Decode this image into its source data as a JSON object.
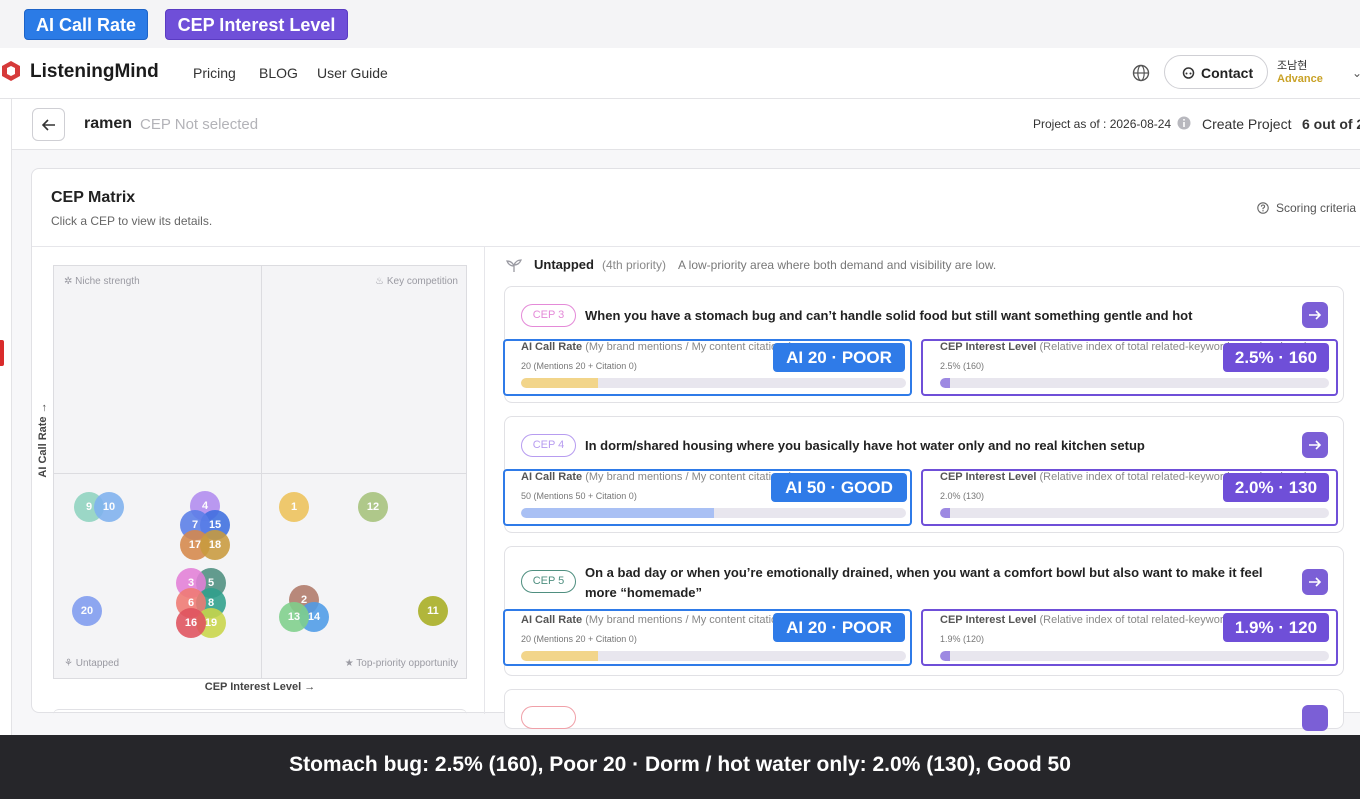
{
  "annotation_tags": {
    "ai_call_rate": "AI Call Rate",
    "cep_interest_level": "CEP Interest Level"
  },
  "navbar": {
    "brand": "ListeningMind",
    "links": [
      "Pricing",
      "BLOG",
      "User Guide"
    ],
    "contact_label": "Contact",
    "user_name": "조남현",
    "user_plan": "Advance"
  },
  "project": {
    "name": "ramen",
    "cep_status": "CEP Not selected",
    "as_of": "Project as of : 2026-08-24",
    "create_label": "Create Project",
    "count_label": "6 out of 2"
  },
  "matrix": {
    "title": "CEP Matrix",
    "subtitle": "Click a CEP to view its details.",
    "scoring_label": "Scoring criteria",
    "quadrants": {
      "top_left": "Niche strength",
      "top_right": "Key competition",
      "bottom_left": "Untapped",
      "bottom_right": "Top-priority opportunity"
    },
    "y_axis_label": "AI Call Rate →",
    "x_axis_label": "CEP Interest Level →",
    "dots": [
      {
        "id": "9",
        "color": "#8fd4c0"
      },
      {
        "id": "10",
        "color": "#7fb2ef"
      },
      {
        "id": "4",
        "color": "#b28cf0"
      },
      {
        "id": "15",
        "color": "#3d6fe0"
      },
      {
        "id": "7",
        "color": "#5a7ee8"
      },
      {
        "id": "17",
        "color": "#d6884b"
      },
      {
        "id": "18",
        "color": "#c99b3e"
      },
      {
        "id": "1",
        "color": "#eec35b"
      },
      {
        "id": "12",
        "color": "#a6c27c"
      },
      {
        "id": "5",
        "color": "#4f8f80"
      },
      {
        "id": "3",
        "color": "#e37fd8"
      },
      {
        "id": "8",
        "color": "#2fa08c"
      },
      {
        "id": "6",
        "color": "#f07a73"
      },
      {
        "id": "19",
        "color": "#c9d64a"
      },
      {
        "id": "16",
        "color": "#e0525e"
      },
      {
        "id": "20",
        "color": "#7f9cf0"
      },
      {
        "id": "2",
        "color": "#b07a6a"
      },
      {
        "id": "14",
        "color": "#4f9ce8"
      },
      {
        "id": "13",
        "color": "#7fd08c"
      },
      {
        "id": "11",
        "color": "#a8ae22"
      }
    ]
  },
  "panel": {
    "section_title": "Untapped",
    "section_priority": "(4th priority)",
    "section_desc": "A low-priority area where both demand and visibility are low.",
    "cards": [
      {
        "badge": "CEP 3",
        "badge_color": "#e48ad8",
        "question": "When you have a stomach bug and can’t handle solid food but still want something gentle and hot",
        "ai_label": "AI Call Rate",
        "ai_desc": "(My brand mentions / My content citations)",
        "ai_value": "20 (Mentions 20 + Citation 0)",
        "ai_fraction": 0.2,
        "ai_bar_color": "#f2d58a",
        "ai_pill": "AI 20 · POOR",
        "interest_label": "CEP Interest Level",
        "interest_desc": "(Relative index of total related-keyword search volume)",
        "interest_value": "2.5% (160)",
        "interest_fraction": 0.025,
        "interest_pill": "2.5% · 160"
      },
      {
        "badge": "CEP 4",
        "badge_color": "#b79cf0",
        "question": "In dorm/shared housing where you basically have hot water only and no real kitchen setup",
        "ai_label": "AI Call Rate",
        "ai_desc": "(My brand mentions / My content citations)",
        "ai_value": "50 (Mentions 50 + Citation 0)",
        "ai_fraction": 0.5,
        "ai_bar_color": "#a9c0f4",
        "ai_pill": "AI 50 · GOOD",
        "interest_label": "CEP Interest Level",
        "interest_desc": "(Relative index of total related-keyword search volume)",
        "interest_value": "2.0% (130)",
        "interest_fraction": 0.02,
        "interest_pill": "2.0% · 130"
      },
      {
        "badge": "CEP 5",
        "badge_color": "#4f8f80",
        "question": "On a bad day or when you’re emotionally drained, when you want a comfort bowl but also want to make it feel more “homemade”",
        "ai_label": "AI Call Rate",
        "ai_desc": "(My brand mentions / My content citations)",
        "ai_value": "20 (Mentions 20 + Citation 0)",
        "ai_fraction": 0.2,
        "ai_bar_color": "#f2d58a",
        "ai_pill": "AI 20 · POOR",
        "interest_label": "CEP Interest Level",
        "interest_desc": "(Relative index of total related-keyword search volume)",
        "interest_value": "1.9% (120)",
        "interest_fraction": 0.019,
        "interest_pill": "1.9% · 120"
      }
    ]
  },
  "caption": "Stomach bug: 2.5% (160), Poor 20 · Dorm / hot water only: 2.0% (130), Good 50"
}
